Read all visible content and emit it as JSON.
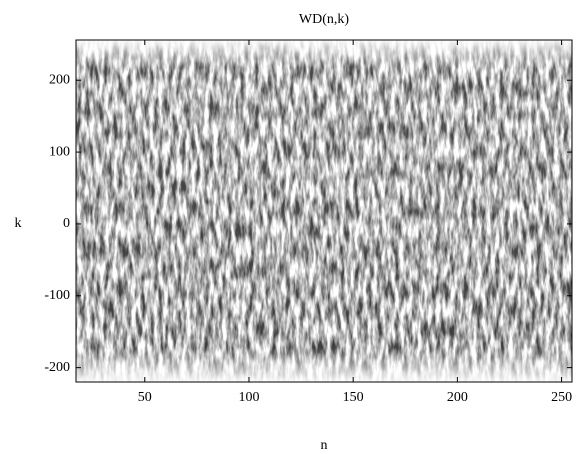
{
  "chart_data": {
    "type": "heatmap",
    "title": "WD(n,k)",
    "x_label": "n",
    "y_label": "k",
    "xlim": [
      17,
      255
    ],
    "xticks": [
      50,
      100,
      150,
      200,
      250
    ],
    "ylim": [
      -220,
      256
    ],
    "yticks": [
      -200,
      -100,
      0,
      100,
      200
    ],
    "colormap": "gray"
  }
}
